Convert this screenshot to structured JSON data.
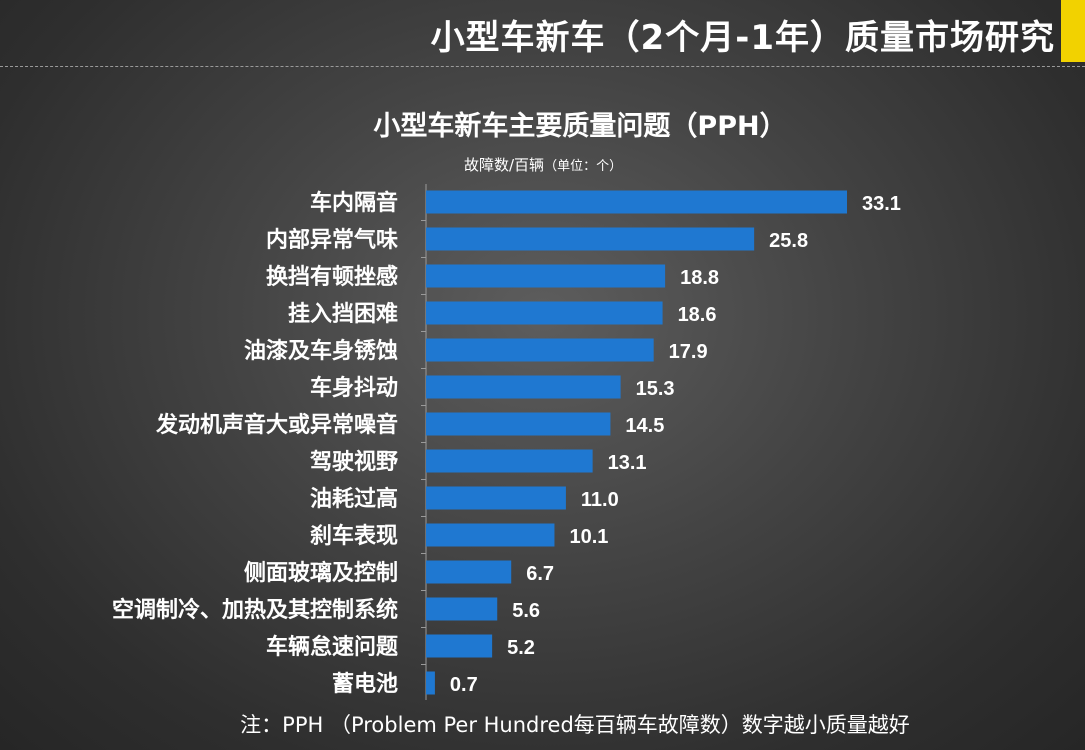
{
  "header": {
    "title": "小型车新车（2个月-1年）质量市场研究",
    "accent_color": "#f2d200"
  },
  "footnote": "注：PPH （Problem Per Hundred每百辆车故障数）数字越小质量越好",
  "chart_data": {
    "type": "bar",
    "orientation": "horizontal",
    "title": "小型车新车主要质量问题（PPH）",
    "unit_label": "故障数/百辆",
    "unit_note": "（单位：个）",
    "categories": [
      "车内隔音",
      "内部异常气味",
      "换挡有顿挫感",
      "挂入挡困难",
      "油漆及车身锈蚀",
      "车身抖动",
      "发动机声音大或异常噪音",
      "驾驶视野",
      "油耗过高",
      "刹车表现",
      "侧面玻璃及控制",
      "空调制冷、加热及其控制系统",
      "车辆怠速问题",
      "蓄电池"
    ],
    "values": [
      33.1,
      25.8,
      18.8,
      18.6,
      17.9,
      15.3,
      14.5,
      13.1,
      11.0,
      10.1,
      6.7,
      5.6,
      5.2,
      0.7
    ],
    "value_labels": [
      "33.1",
      "25.8",
      "18.8",
      "18.6",
      "17.9",
      "15.3",
      "14.5",
      "13.1",
      "11.0",
      "10.1",
      "6.7",
      "5.6",
      "5.2",
      "0.7"
    ],
    "xlim": [
      0,
      33.1
    ],
    "bar_color": "#1f78d1",
    "grid": false,
    "legend": "none"
  }
}
